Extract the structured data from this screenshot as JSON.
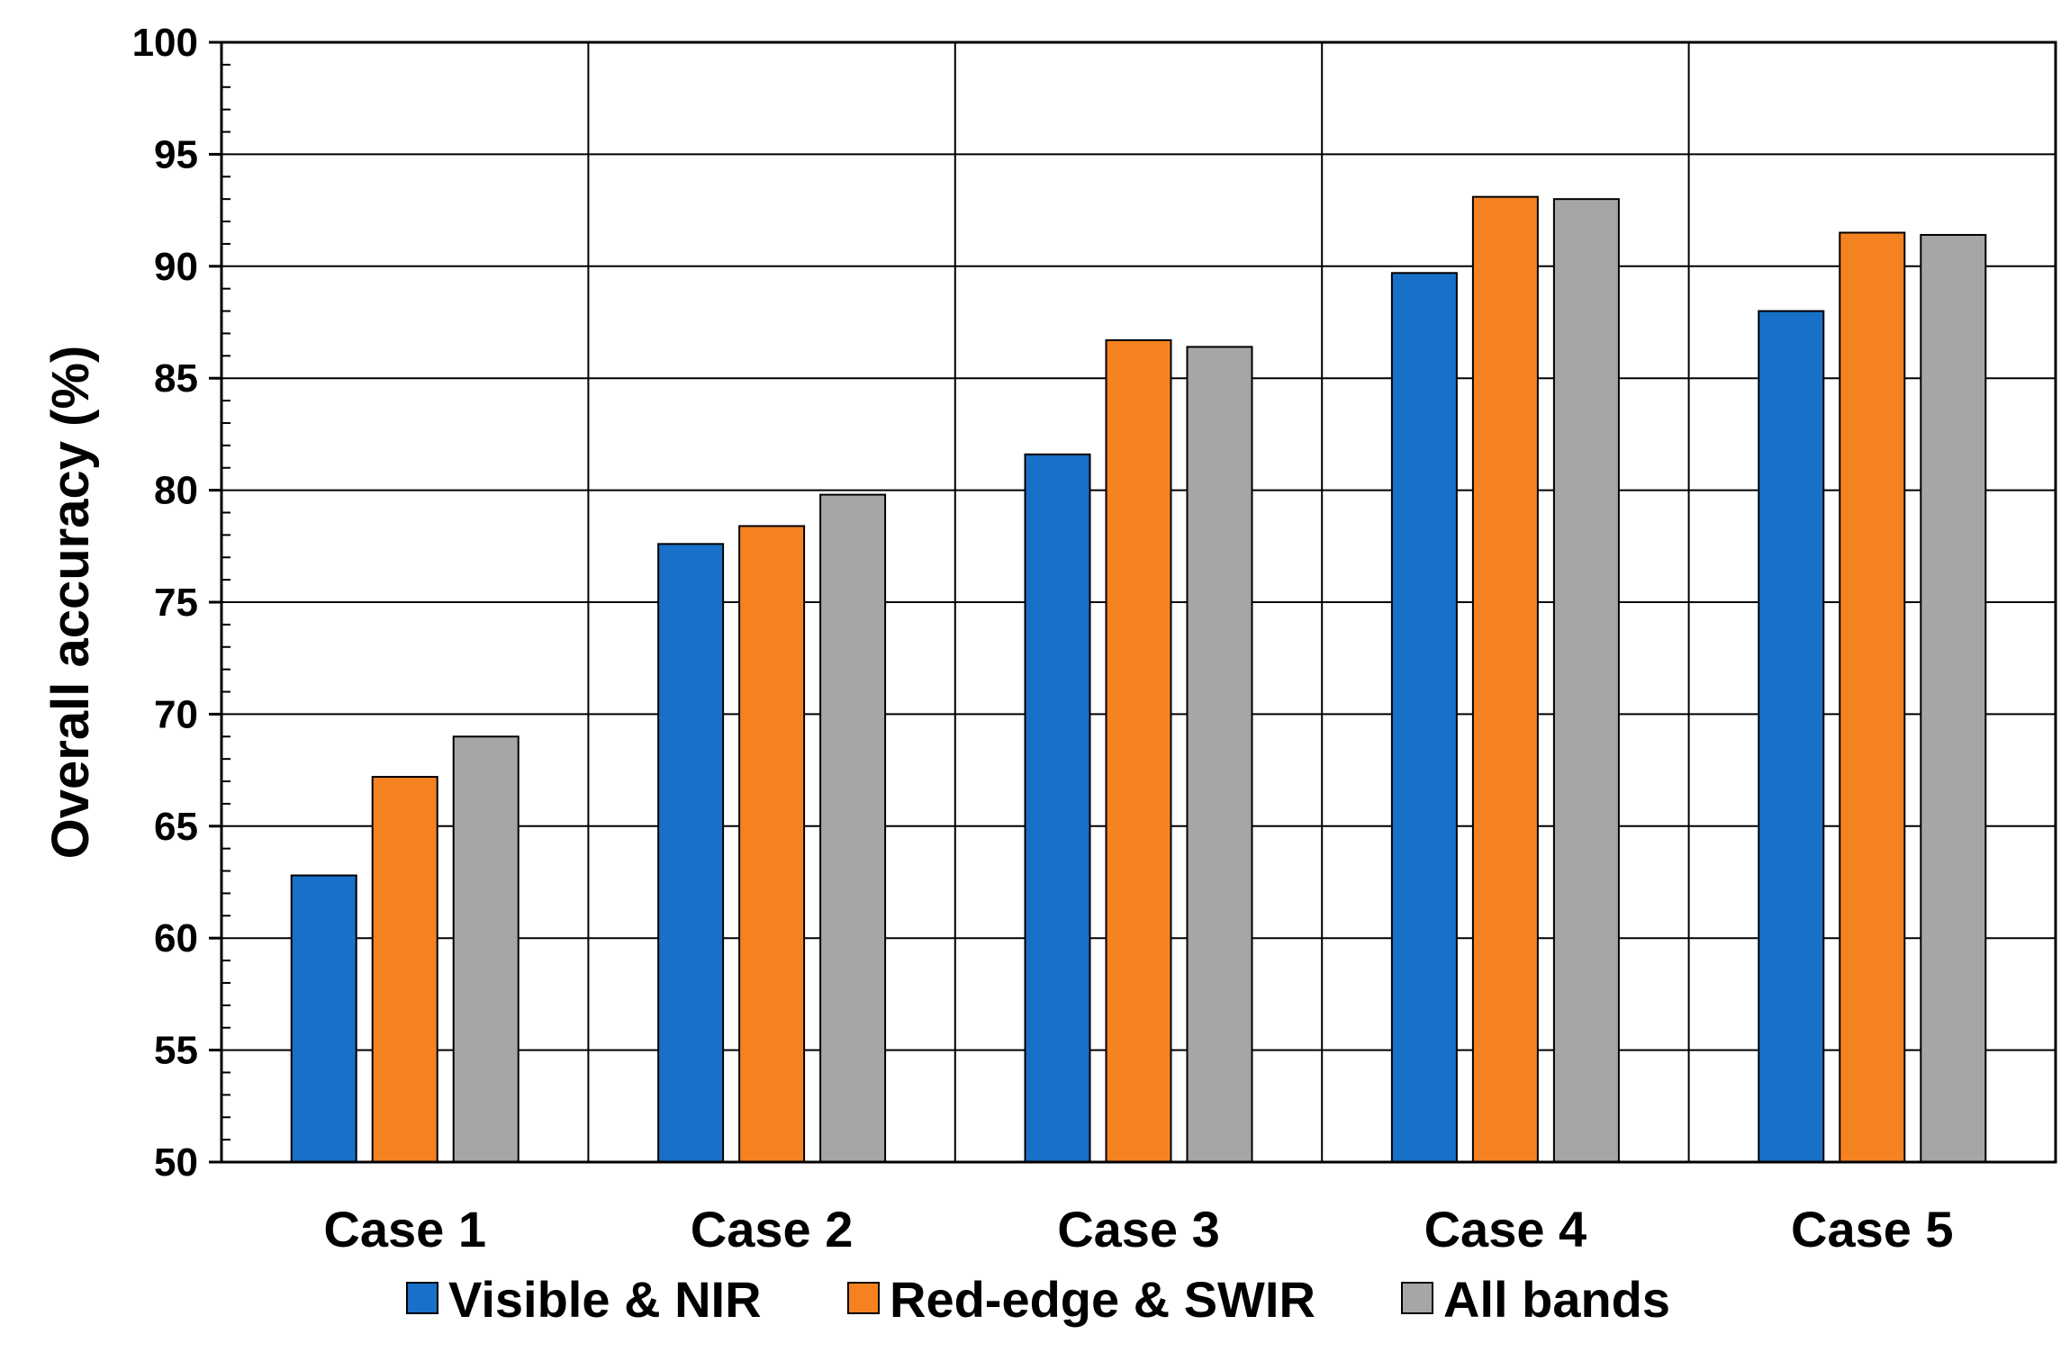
{
  "chart_data": {
    "type": "bar",
    "title": "",
    "xlabel": "",
    "ylabel": "Overall accuracy (%)",
    "ylim": [
      50,
      100
    ],
    "ytick_step": 5,
    "yminor_step": 1,
    "yticks": [
      "50",
      "55",
      "60",
      "65",
      "70",
      "75",
      "80",
      "85",
      "90",
      "95",
      "100"
    ],
    "grid": true,
    "legend_position": "bottom",
    "categories": [
      "Case 1",
      "Case 2",
      "Case 3",
      "Case 4",
      "Case 5"
    ],
    "series": [
      {
        "name": "Visible & NIR",
        "color": "#1870C8",
        "values": [
          62.8,
          77.6,
          81.6,
          89.7,
          88.0
        ]
      },
      {
        "name": "Red-edge & SWIR",
        "color": "#F58220",
        "values": [
          67.2,
          78.4,
          86.7,
          93.1,
          91.5
        ]
      },
      {
        "name": "All bands",
        "color": "#A6A6A6",
        "values": [
          69.0,
          79.8,
          86.4,
          93.0,
          91.4
        ]
      }
    ]
  }
}
